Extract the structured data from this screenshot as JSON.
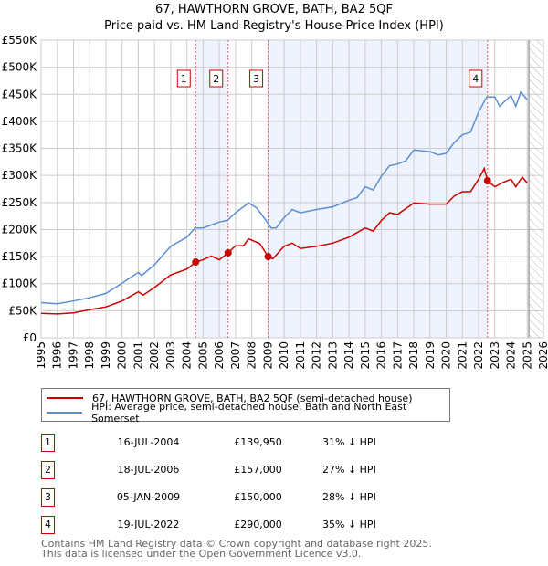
{
  "chart_data": {
    "type": "line",
    "title": "67, HAWTHORN GROVE, BATH, BA2 5QF",
    "subtitle": "Price paid vs. HM Land Registry's House Price Index (HPI)",
    "xlabel": "",
    "ylabel": "",
    "xlim": [
      1995,
      2026
    ],
    "ylim": [
      0,
      550000
    ],
    "yticks": [
      0,
      50000,
      100000,
      150000,
      200000,
      250000,
      300000,
      350000,
      400000,
      450000,
      500000,
      550000
    ],
    "ytick_labels": [
      "£0",
      "£50K",
      "£100K",
      "£150K",
      "£200K",
      "£250K",
      "£300K",
      "£350K",
      "£400K",
      "£450K",
      "£500K",
      "£550K"
    ],
    "xticks": [
      "1995",
      "1996",
      "1997",
      "1998",
      "1999",
      "2000",
      "2001",
      "2002",
      "2003",
      "2004",
      "2005",
      "2006",
      "2007",
      "2008",
      "2009",
      "2010",
      "2011",
      "2012",
      "2013",
      "2014",
      "2015",
      "2016",
      "2017",
      "2018",
      "2019",
      "2020",
      "2021",
      "2022",
      "2023",
      "2024",
      "2025",
      "2026"
    ],
    "grid": true,
    "forecast_hatch_from": 2025.1,
    "series": [
      {
        "name": "67, HAWTHORN GROVE, BATH, BA2 5QF (semi-detached house)",
        "color": "#cc0000",
        "x": [
          1995,
          1996,
          1997,
          1998,
          1999,
          2000,
          2001,
          2001.3,
          2002,
          2003,
          2004,
          2004.54,
          2005,
          2005.5,
          2006,
          2006.54,
          2007,
          2007.5,
          2007.8,
          2008.5,
          2009.01,
          2009.3,
          2010,
          2010.5,
          2011,
          2012,
          2013,
          2014,
          2015,
          2015.5,
          2016,
          2016.5,
          2017,
          2018,
          2019,
          2020,
          2020.5,
          2021,
          2021.5,
          2022,
          2022.35,
          2022.55,
          2023,
          2023.5,
          2024,
          2024.3,
          2024.7,
          2025
        ],
        "y": [
          45000,
          44000,
          46000,
          52000,
          57000,
          68000,
          85000,
          79000,
          93000,
          116000,
          127000,
          139950,
          144000,
          151000,
          144000,
          157000,
          170000,
          170000,
          183000,
          174000,
          150000,
          146000,
          169000,
          175000,
          165000,
          169000,
          175000,
          186000,
          203000,
          197000,
          217000,
          231000,
          228000,
          249000,
          247000,
          247000,
          262000,
          270000,
          270000,
          293000,
          313000,
          290000,
          279000,
          287000,
          293000,
          279000,
          297000,
          286000
        ]
      },
      {
        "name": "HPI: Average price, semi-detached house, Bath and North East Somerset",
        "color": "#5b8fd0",
        "x": [
          1995,
          1996,
          1997,
          1998,
          1999,
          2000,
          2001,
          2001.2,
          2002,
          2003,
          2004,
          2004.5,
          2005,
          2006,
          2006.5,
          2007,
          2007.8,
          2008.3,
          2008.8,
          2009.2,
          2009.5,
          2010,
          2010.5,
          2011,
          2012,
          2013,
          2014,
          2014.5,
          2015,
          2015.5,
          2016,
          2016.5,
          2017,
          2017.5,
          2018,
          2019,
          2019.5,
          2020,
          2020.5,
          2021,
          2021.5,
          2022,
          2022.5,
          2023,
          2023.3,
          2024,
          2024.3,
          2024.6,
          2025
        ],
        "y": [
          65000,
          63000,
          68000,
          74000,
          82000,
          101000,
          121000,
          115000,
          135000,
          169000,
          186000,
          203000,
          203000,
          214000,
          217000,
          231000,
          249000,
          240000,
          220000,
          203000,
          203000,
          222000,
          237000,
          231000,
          237000,
          242000,
          254000,
          259000,
          279000,
          273000,
          299000,
          318000,
          321000,
          327000,
          347000,
          344000,
          338000,
          341000,
          361000,
          375000,
          380000,
          417000,
          445000,
          445000,
          428000,
          448000,
          428000,
          454000,
          440000
        ]
      }
    ],
    "sales": [
      {
        "label": "1",
        "x": 2004.54,
        "price": 139950
      },
      {
        "label": "2",
        "x": 2006.54,
        "price": 157000
      },
      {
        "label": "3",
        "x": 2009.01,
        "price": 150000
      },
      {
        "label": "4",
        "x": 2022.55,
        "price": 290000
      }
    ],
    "shaded_ranges": [
      [
        2004.54,
        2006.54
      ],
      [
        2009.01,
        2022.55
      ]
    ],
    "legend_placement": "below"
  },
  "legend": {
    "property": "67, HAWTHORN GROVE, BATH, BA2 5QF (semi-detached house)",
    "hpi": "HPI: Average price, semi-detached house, Bath and North East Somerset"
  },
  "transactions": [
    {
      "num": "1",
      "date": "16-JUL-2004",
      "price": "£139,950",
      "hpi": "31% ↓ HPI"
    },
    {
      "num": "2",
      "date": "18-JUL-2006",
      "price": "£157,000",
      "hpi": "27% ↓ HPI"
    },
    {
      "num": "3",
      "date": "05-JAN-2009",
      "price": "£150,000",
      "hpi": "28% ↓ HPI"
    },
    {
      "num": "4",
      "date": "19-JUL-2022",
      "price": "£290,000",
      "hpi": "35% ↓ HPI"
    }
  ],
  "footer": {
    "line1": "Contains HM Land Registry data © Crown copyright and database right 2025.",
    "line2": "This data is licensed under the Open Government Licence v3.0."
  }
}
